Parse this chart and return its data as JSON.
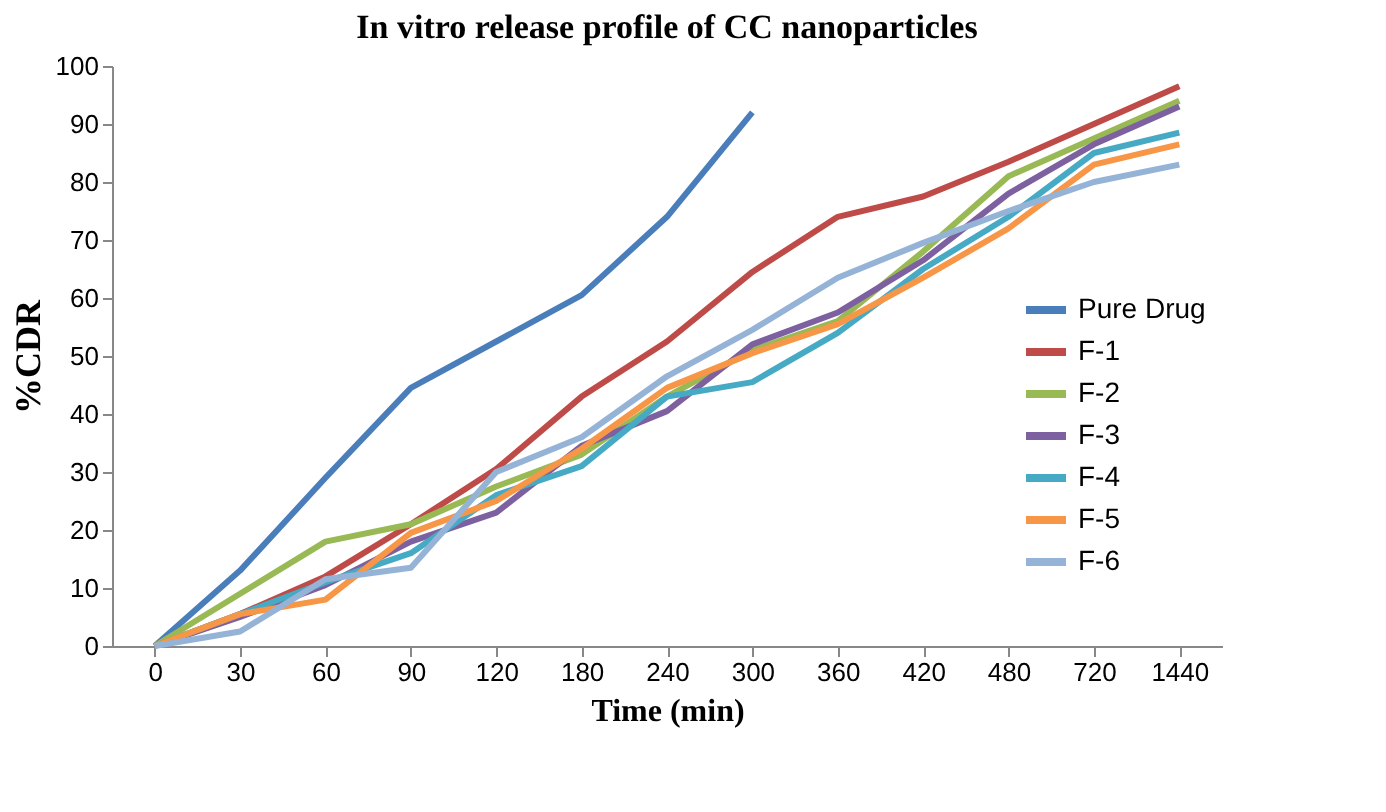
{
  "chart_data": {
    "type": "line",
    "title": "In vitro release profile of CC nanoparticles",
    "xlabel": "Time (min)",
    "ylabel": "%CDR",
    "categories": [
      "0",
      "30",
      "60",
      "90",
      "120",
      "180",
      "240",
      "300",
      "360",
      "420",
      "480",
      "720",
      "1440"
    ],
    "ylim": [
      0,
      100
    ],
    "yticks": [
      0,
      10,
      20,
      30,
      40,
      50,
      60,
      70,
      80,
      90,
      100
    ],
    "grid": false,
    "legend": "right",
    "marker": "none",
    "line_style": "solid",
    "series": [
      {
        "name": "Pure Drug",
        "color": "#4a7ebb",
        "values": [
          0,
          13,
          29,
          44.5,
          52.5,
          60.5,
          74,
          92,
          null,
          null,
          null,
          null,
          null
        ]
      },
      {
        "name": "F-1",
        "color": "#be4b48",
        "values": [
          0,
          5.5,
          12,
          21,
          30.5,
          43,
          52.5,
          64.5,
          74,
          77.5,
          83.5,
          90,
          96.5
        ]
      },
      {
        "name": "F-2",
        "color": "#98b954",
        "values": [
          0,
          9,
          18,
          21,
          27.5,
          33,
          43,
          51,
          56,
          68,
          81,
          87.5,
          94
        ]
      },
      {
        "name": "F-3",
        "color": "#7d60a0",
        "values": [
          0,
          5,
          10.5,
          18,
          23,
          34.5,
          40.5,
          52,
          57.5,
          66.5,
          78,
          86.5,
          93
        ]
      },
      {
        "name": "F-4",
        "color": "#46aac5",
        "values": [
          0,
          5.5,
          11,
          16,
          26,
          31,
          43,
          45.5,
          54,
          65,
          74,
          85,
          88.5
        ]
      },
      {
        "name": "F-5",
        "color": "#f79646",
        "values": [
          0,
          5.5,
          8,
          19.5,
          25,
          34,
          44.5,
          50.5,
          55.5,
          63.5,
          72,
          83,
          86.5
        ]
      },
      {
        "name": "F-6",
        "color": "#95b3d7",
        "values": [
          0,
          2.5,
          11.5,
          13.5,
          30,
          36,
          46.5,
          54.5,
          63.5,
          69.5,
          75,
          80,
          83
        ]
      }
    ]
  }
}
